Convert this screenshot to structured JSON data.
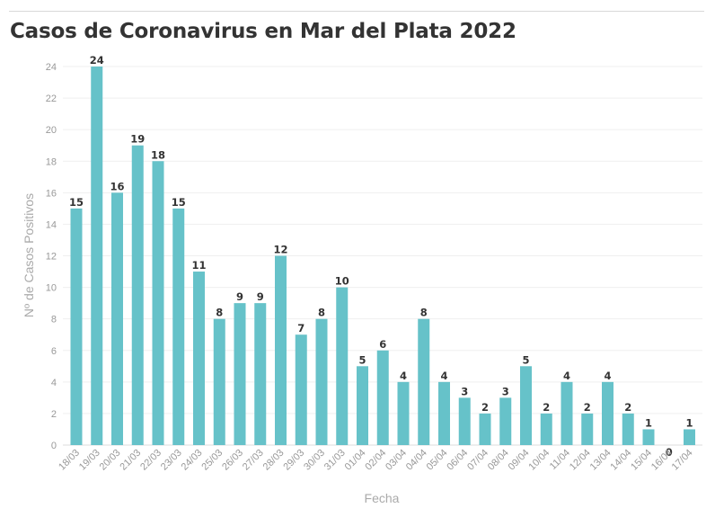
{
  "chart_data": {
    "type": "bar",
    "title": "Casos de Coronavirus en Mar del Plata 2022",
    "xlabel": "Fecha",
    "ylabel": "Nº de Casos Positivos",
    "ylim": [
      0,
      24
    ],
    "yticks": [
      0,
      2,
      4,
      6,
      8,
      10,
      12,
      14,
      16,
      18,
      20,
      22,
      24
    ],
    "grid": true,
    "bar_color": "#66c2c9",
    "categories": [
      "18/03",
      "19/03",
      "20/03",
      "21/03",
      "22/03",
      "23/03",
      "24/03",
      "25/03",
      "26/03",
      "27/03",
      "28/03",
      "29/03",
      "30/03",
      "31/03",
      "01/04",
      "02/04",
      "03/04",
      "04/04",
      "05/04",
      "06/04",
      "07/04",
      "08/04",
      "09/04",
      "10/04",
      "11/04",
      "12/04",
      "13/04",
      "14/04",
      "15/04",
      "16/04",
      "17/04"
    ],
    "values": [
      15,
      24,
      16,
      19,
      18,
      15,
      11,
      8,
      9,
      9,
      12,
      7,
      8,
      10,
      5,
      6,
      4,
      8,
      4,
      3,
      2,
      3,
      5,
      2,
      4,
      2,
      4,
      2,
      1,
      0,
      1
    ]
  }
}
